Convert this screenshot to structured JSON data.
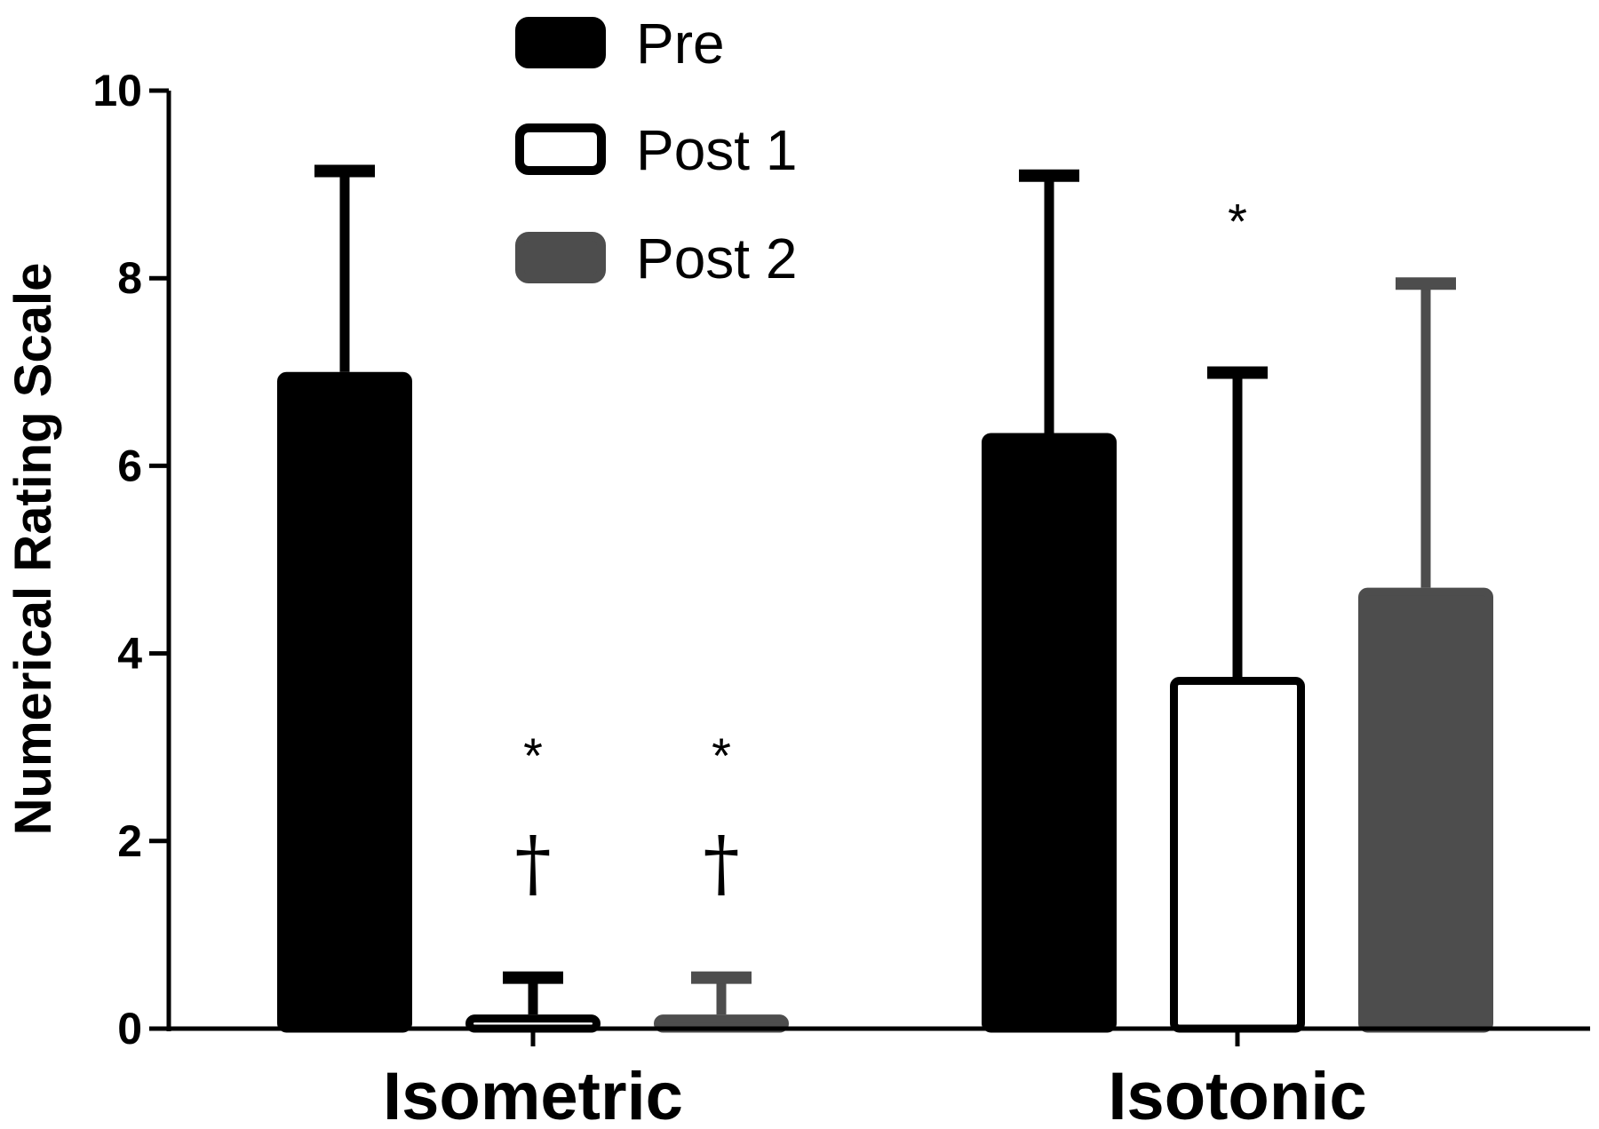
{
  "chart_data": {
    "type": "bar",
    "title": "",
    "xlabel": "",
    "ylabel": "Numerical Rating Scale",
    "ylim": [
      0,
      10
    ],
    "yticks": [
      "0",
      "2",
      "4",
      "6",
      "8",
      "10"
    ],
    "categories": [
      "Isometric",
      "Isotonic"
    ],
    "series": [
      {
        "name": "Pre",
        "values": [
          7.0,
          6.35
        ],
        "errors": [
          2.2,
          2.8
        ],
        "color": "#000000",
        "fill": "#000000"
      },
      {
        "name": "Post 1",
        "values": [
          0.15,
          3.75
        ],
        "errors": [
          0.45,
          3.3
        ],
        "color": "#000000",
        "fill": "#ffffff"
      },
      {
        "name": "Post 2",
        "values": [
          0.15,
          4.7
        ],
        "errors": [
          0.45,
          3.3
        ],
        "color": "#4d4d4d",
        "fill": "#4d4d4d"
      }
    ],
    "legend": "top-center",
    "grid": false,
    "annotations": [
      {
        "category": 0,
        "series": 1,
        "lines": [
          "*",
          "†"
        ]
      },
      {
        "category": 0,
        "series": 2,
        "lines": [
          "*",
          "†"
        ]
      },
      {
        "category": 1,
        "series": 1,
        "lines": [
          "*"
        ]
      }
    ]
  }
}
